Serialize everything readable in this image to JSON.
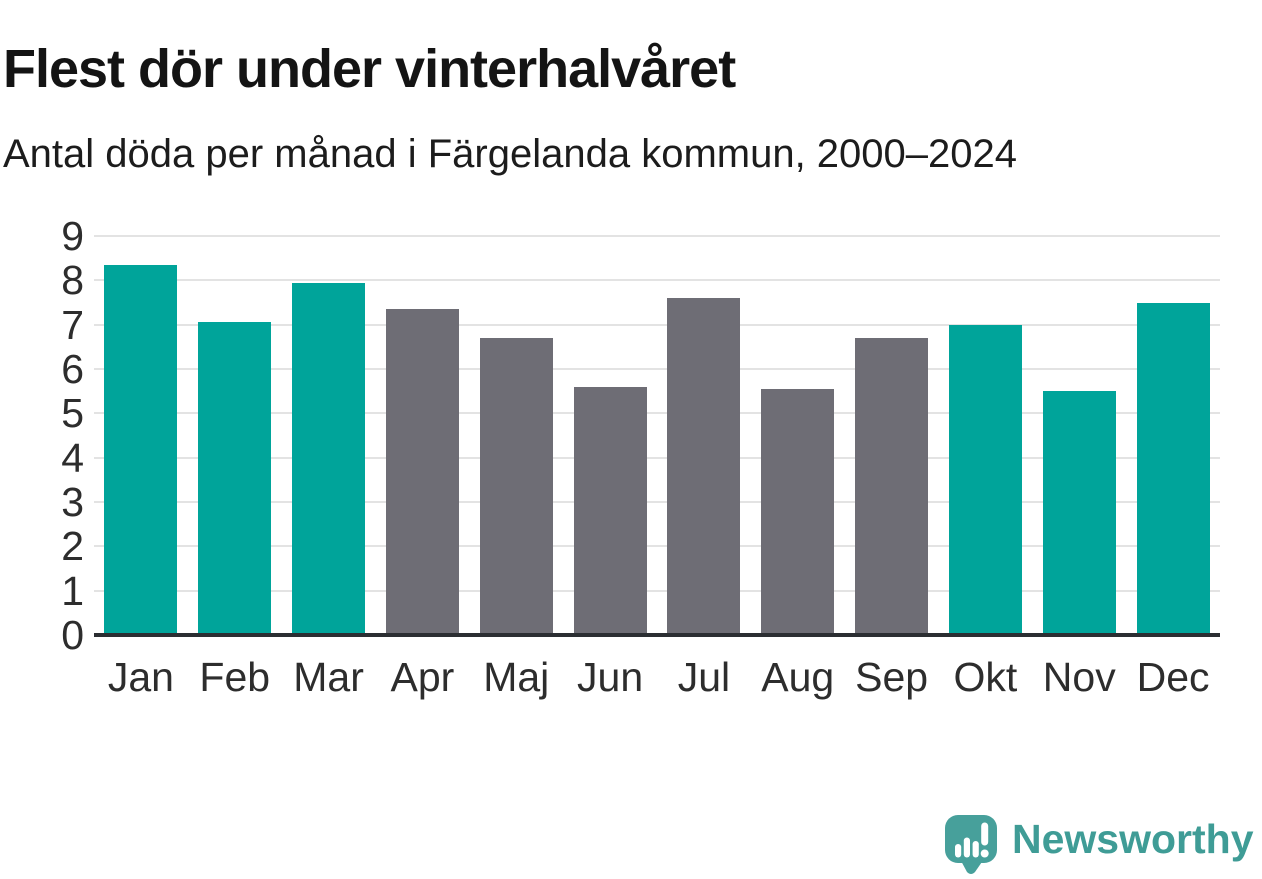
{
  "header": {
    "title": "Flest dör under vinterhalvåret",
    "subtitle": "Antal döda per månad i Färgelanda kommun, 2000–2024"
  },
  "chart_data": {
    "type": "bar",
    "title": "Flest dör under vinterhalvåret",
    "subtitle": "Antal döda per månad i Färgelanda kommun, 2000–2024",
    "categories": [
      "Jan",
      "Feb",
      "Mar",
      "Apr",
      "Maj",
      "Jun",
      "Jul",
      "Aug",
      "Sep",
      "Okt",
      "Nov",
      "Dec"
    ],
    "values": [
      8.35,
      7.05,
      7.95,
      7.35,
      6.7,
      5.6,
      7.6,
      5.55,
      6.7,
      7.0,
      5.5,
      7.5
    ],
    "bar_groups": [
      "winter",
      "winter",
      "winter",
      "offseason",
      "offseason",
      "offseason",
      "offseason",
      "offseason",
      "offseason",
      "winter",
      "winter",
      "winter"
    ],
    "palette": {
      "winter": "#00a49a",
      "offseason": "#6e6d75"
    },
    "xlabel": "",
    "ylabel": "",
    "ylim": [
      0,
      9
    ],
    "yticks": [
      0,
      1,
      2,
      3,
      4,
      5,
      6,
      7,
      8,
      9
    ],
    "grid": "horizontal",
    "legend": "none",
    "gridline_color": "#e3e3e3",
    "baseline_color": "#2b2e32",
    "label_color": "#2d2d2d"
  },
  "branding": {
    "logo_text": "Newsworthy",
    "logo_color": "#3f9c96",
    "logo_icon": "speech-bubble-bar-chart-icon",
    "logo_icon_color": "#47a09b"
  }
}
